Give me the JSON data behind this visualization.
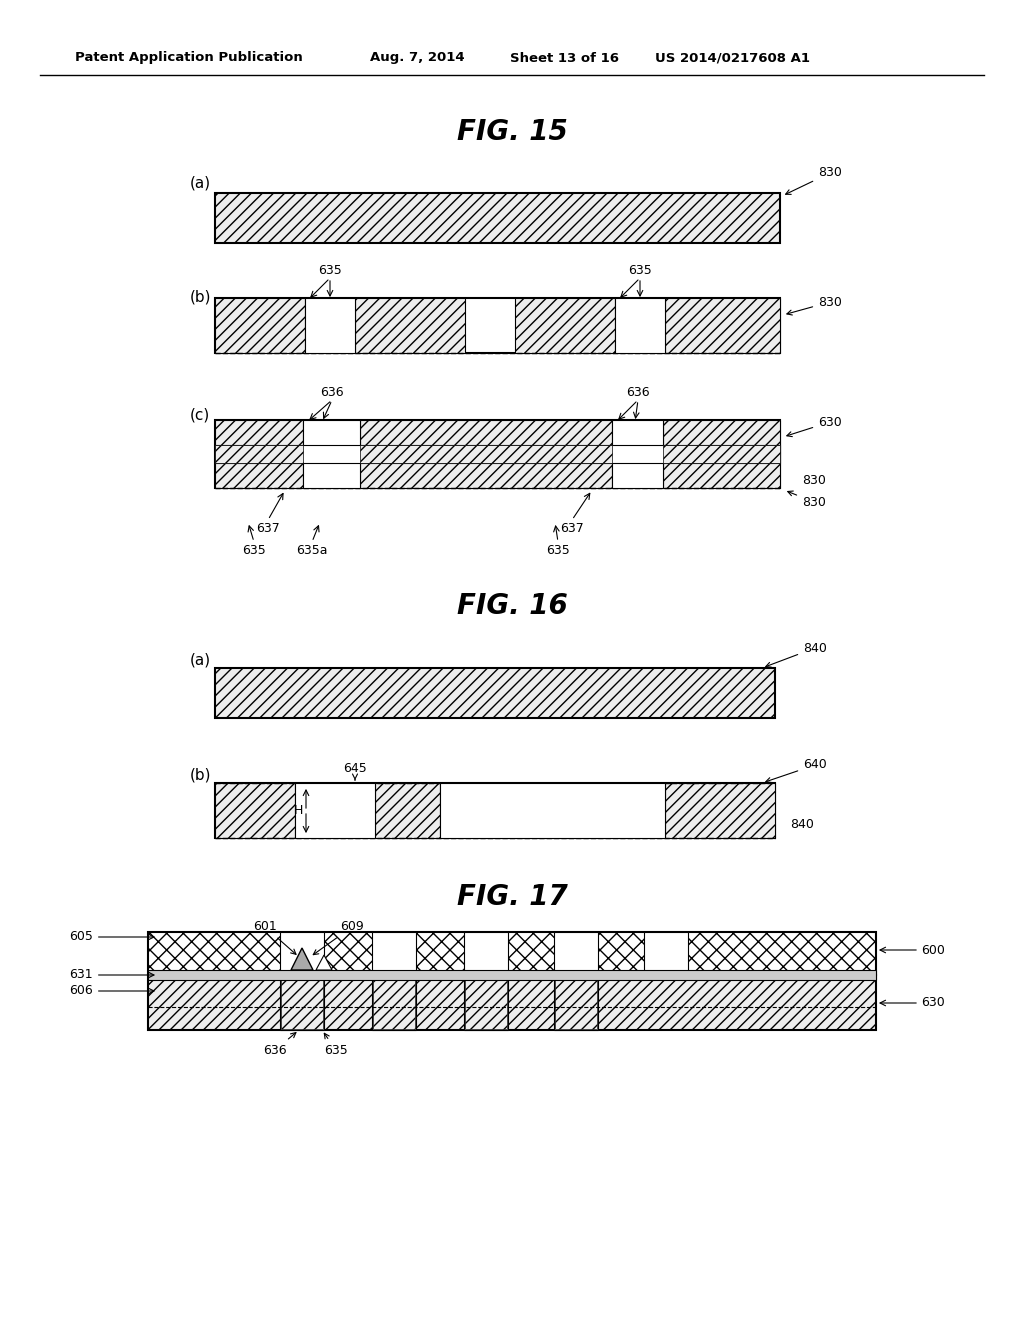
{
  "bg_color": "#ffffff",
  "header_text": "Patent Application Publication",
  "header_date": "Aug. 7, 2014",
  "header_sheet": "Sheet 13 of 16",
  "header_patent": "US 2014/0217608 A1",
  "fig15_title": "FIG. 15",
  "fig16_title": "FIG. 16",
  "fig17_title": "FIG. 17"
}
